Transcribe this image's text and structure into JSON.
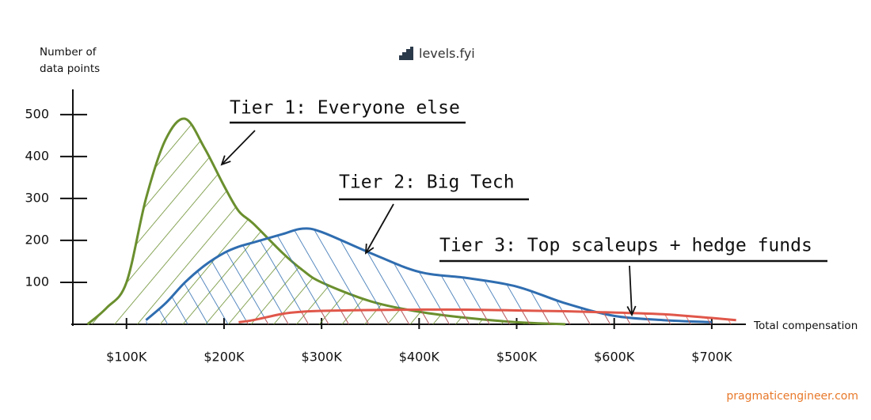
{
  "chart_data": {
    "type": "line",
    "y_label": "Number of data points",
    "x_label": "Total compensation",
    "brand": "levels.fyi",
    "source": "pragmaticengineer.com",
    "x": [
      60000,
      80000,
      100000,
      120000,
      140000,
      160000,
      180000,
      200000,
      215000,
      230000,
      260000,
      280000,
      300000,
      350000,
      400000,
      450000,
      500000,
      550000,
      600000,
      650000,
      700000,
      725000
    ],
    "series": [
      {
        "name": "Tier 1: Everyone else",
        "color": "#6a8f2e",
        "values": [
          0,
          40,
          100,
          300,
          440,
          490,
          420,
          330,
          270,
          240,
          170,
          130,
          100,
          55,
          30,
          15,
          5,
          0,
          null,
          null,
          null,
          null
        ]
      },
      {
        "name": "Tier 2: Big Tech",
        "color": "#2f6db0",
        "values": [
          null,
          null,
          null,
          10,
          50,
          100,
          140,
          170,
          185,
          195,
          215,
          228,
          220,
          170,
          125,
          110,
          90,
          50,
          20,
          10,
          5,
          null
        ]
      },
      {
        "name": "Tier 3: Top scaleups + hedge funds",
        "color": "#e0574a",
        "values": [
          null,
          null,
          null,
          null,
          null,
          null,
          null,
          null,
          5,
          10,
          25,
          30,
          32,
          34,
          35,
          35,
          33,
          31,
          28,
          24,
          15,
          10
        ]
      }
    ],
    "xlim": [
      45000,
      735000
    ],
    "ylim": [
      0,
      560
    ],
    "xticks": [
      {
        "value": 100000,
        "label": "$100K"
      },
      {
        "value": 200000,
        "label": "$200K"
      },
      {
        "value": 300000,
        "label": "$300K"
      },
      {
        "value": 400000,
        "label": "$400K"
      },
      {
        "value": 500000,
        "label": "$500K"
      },
      {
        "value": 600000,
        "label": "$600K"
      },
      {
        "value": 700000,
        "label": "$700K"
      }
    ],
    "yticks": [
      100,
      200,
      300,
      400,
      500
    ]
  }
}
